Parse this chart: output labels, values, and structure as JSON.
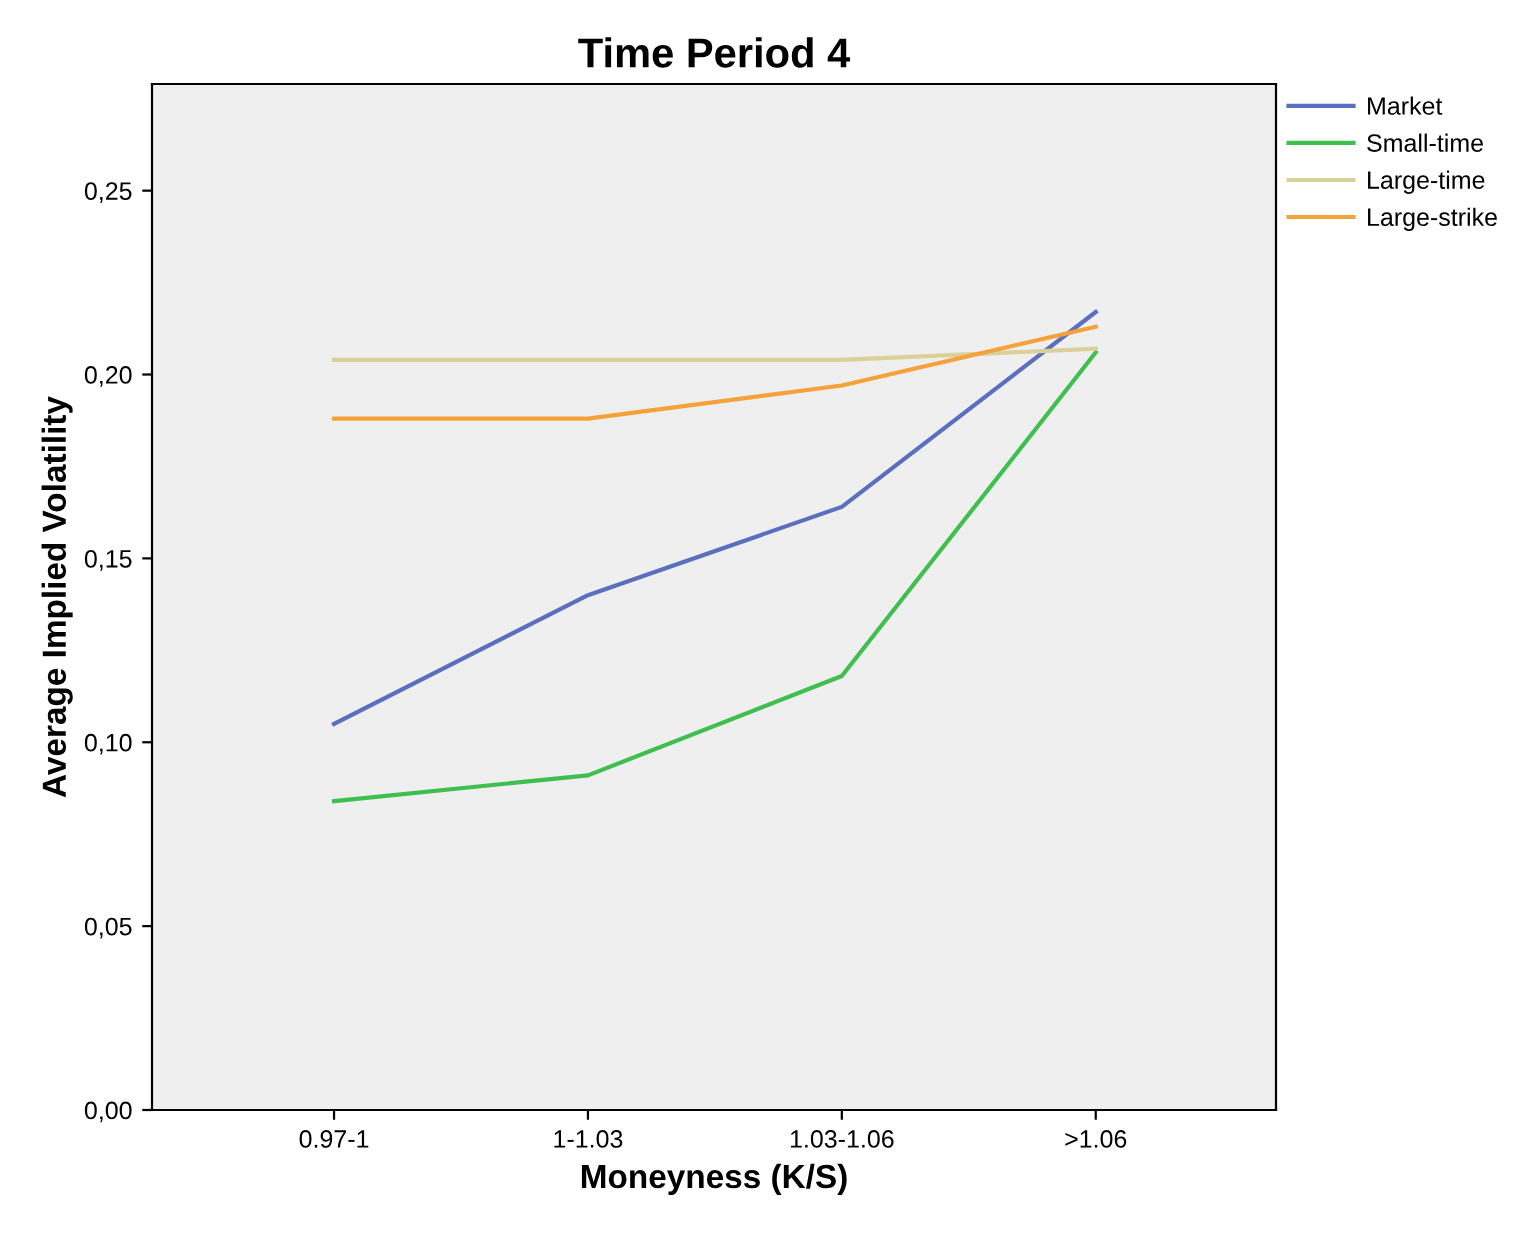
{
  "chart_data": {
    "type": "line",
    "title": "Time Period 4",
    "xlabel": "Moneyness (K/S)",
    "ylabel": "Average Implied Volatility",
    "categories": [
      "0.97-1",
      "1-1.03",
      "1.03-1.06",
      ">1.06"
    ],
    "series": [
      {
        "name": "Market",
        "color": "#5b6fbf",
        "values": [
          0.105,
          0.14,
          0.164,
          0.217
        ]
      },
      {
        "name": "Small-time",
        "color": "#3fbf4f",
        "values": [
          0.084,
          0.091,
          0.118,
          0.206
        ]
      },
      {
        "name": "Large-time",
        "color": "#d9d09a",
        "values": [
          0.204,
          0.204,
          0.204,
          0.207
        ]
      },
      {
        "name": "Large-strike",
        "color": "#f5a23a",
        "values": [
          0.188,
          0.188,
          0.197,
          0.213
        ]
      }
    ],
    "ylim": [
      0,
      0.279
    ],
    "yticks": [
      {
        "value": 0,
        "label": "0,00"
      },
      {
        "value": 0.05,
        "label": "0,05"
      },
      {
        "value": 0.1,
        "label": "0,10"
      },
      {
        "value": 0.15,
        "label": "0,15"
      },
      {
        "value": 0.2,
        "label": "0,20"
      },
      {
        "value": 0.25,
        "label": "0,25"
      }
    ],
    "legend": "top right",
    "grid": false,
    "marker": "none",
    "line_style": "solid"
  }
}
